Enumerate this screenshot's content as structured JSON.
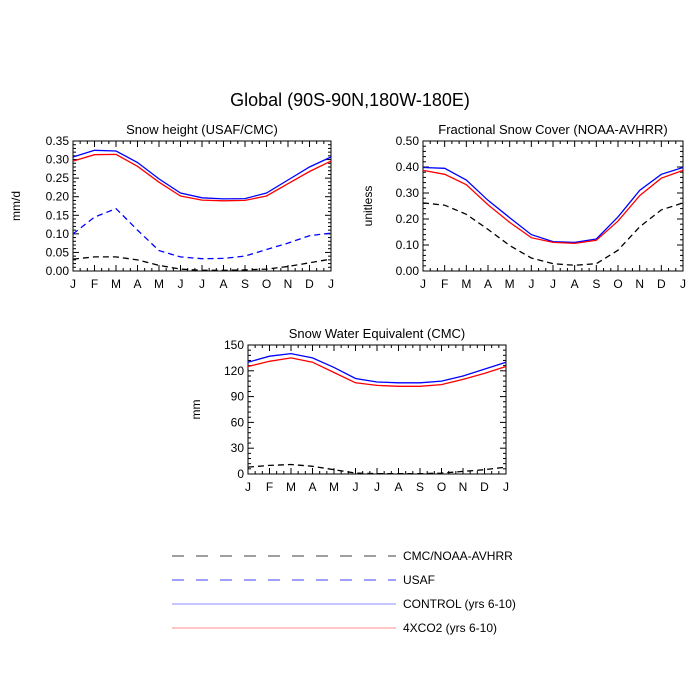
{
  "title": "Global (90S-90N,180W-180E)",
  "colors": {
    "cmc": "#000000",
    "usaf": "#0000ff",
    "control": "#0000ff",
    "x4co2": "#ff0000"
  },
  "legend": [
    {
      "label": "CMC/NOAA-AVHRR",
      "color": "#000000",
      "dash": true
    },
    {
      "label": "USAF",
      "color": "#0000ff",
      "dash": true
    },
    {
      "label": "CONTROL (yrs 6-10)",
      "color": "#0000ff",
      "dash": false
    },
    {
      "label": "4XCO2 (yrs 6-10)",
      "color": "#ff0000",
      "dash": false
    }
  ],
  "chart_data": [
    {
      "type": "line",
      "title": "Snow height (USAF/CMC)",
      "ylabel": "mm/d",
      "categories": [
        "J",
        "F",
        "M",
        "A",
        "M",
        "J",
        "J",
        "A",
        "S",
        "O",
        "N",
        "D",
        "J"
      ],
      "ylim": [
        0,
        0.35
      ],
      "yticks": [
        0.0,
        0.05,
        0.1,
        0.15,
        0.2,
        0.25,
        0.3,
        0.35
      ],
      "ytick_labels": [
        "0.00",
        "0.05",
        "0.10",
        "0.15",
        "0.20",
        "0.25",
        "0.30",
        "0.35"
      ],
      "series": [
        {
          "name": "CMC/NOAA-AVHRR",
          "color": "#000000",
          "dash": true,
          "values": [
            0.032,
            0.038,
            0.038,
            0.03,
            0.015,
            0.005,
            0.002,
            0.002,
            0.003,
            0.005,
            0.012,
            0.022,
            0.032
          ]
        },
        {
          "name": "USAF",
          "color": "#0000ff",
          "dash": true,
          "values": [
            0.1,
            0.145,
            0.168,
            0.11,
            0.055,
            0.038,
            0.033,
            0.034,
            0.04,
            0.058,
            0.075,
            0.095,
            0.102
          ]
        },
        {
          "name": "CONTROL (yrs 6-10)",
          "color": "#0000ff",
          "dash": false,
          "values": [
            0.307,
            0.325,
            0.323,
            0.292,
            0.248,
            0.21,
            0.197,
            0.194,
            0.195,
            0.21,
            0.245,
            0.28,
            0.307
          ]
        },
        {
          "name": "4XCO2 (yrs 6-10)",
          "color": "#ff0000",
          "dash": false,
          "values": [
            0.296,
            0.313,
            0.314,
            0.282,
            0.239,
            0.202,
            0.191,
            0.189,
            0.19,
            0.202,
            0.235,
            0.268,
            0.296
          ]
        }
      ]
    },
    {
      "type": "line",
      "title": "Fractional Snow Cover (NOAA-AVHRR)",
      "ylabel": "unitless",
      "categories": [
        "J",
        "F",
        "M",
        "A",
        "M",
        "J",
        "J",
        "A",
        "S",
        "O",
        "N",
        "D",
        "J"
      ],
      "ylim": [
        0,
        0.5
      ],
      "yticks": [
        0.0,
        0.1,
        0.2,
        0.3,
        0.4,
        0.5
      ],
      "ytick_labels": [
        "0.00",
        "0.10",
        "0.20",
        "0.30",
        "0.40",
        "0.50"
      ],
      "series": [
        {
          "name": "CMC/NOAA-AVHRR",
          "color": "#000000",
          "dash": true,
          "values": [
            0.262,
            0.253,
            0.218,
            0.16,
            0.098,
            0.05,
            0.028,
            0.022,
            0.028,
            0.08,
            0.17,
            0.235,
            0.262
          ]
        },
        {
          "name": "CONTROL (yrs 6-10)",
          "color": "#0000ff",
          "dash": false,
          "values": [
            0.398,
            0.395,
            0.35,
            0.272,
            0.205,
            0.14,
            0.113,
            0.11,
            0.123,
            0.208,
            0.31,
            0.372,
            0.398
          ]
        },
        {
          "name": "4XCO2 (yrs 6-10)",
          "color": "#ff0000",
          "dash": false,
          "values": [
            0.387,
            0.372,
            0.332,
            0.255,
            0.187,
            0.128,
            0.11,
            0.106,
            0.118,
            0.192,
            0.29,
            0.357,
            0.387
          ]
        }
      ]
    },
    {
      "type": "line",
      "title": "Snow Water Equivalent (CMC)",
      "ylabel": "mm",
      "categories": [
        "J",
        "F",
        "M",
        "A",
        "M",
        "J",
        "J",
        "A",
        "S",
        "O",
        "N",
        "D",
        "J"
      ],
      "ylim": [
        0,
        150
      ],
      "yticks": [
        0,
        30,
        60,
        90,
        120,
        150
      ],
      "ytick_labels": [
        "0",
        "30",
        "60",
        "90",
        "120",
        "150"
      ],
      "series": [
        {
          "name": "CMC/NOAA-AVHRR",
          "color": "#000000",
          "dash": true,
          "values": [
            8,
            10,
            11,
            9,
            5,
            1,
            0.5,
            0.3,
            0.4,
            1,
            3,
            5,
            8
          ]
        },
        {
          "name": "CONTROL (yrs 6-10)",
          "color": "#0000ff",
          "dash": false,
          "values": [
            130,
            137,
            140,
            135,
            124,
            111,
            107,
            106,
            106,
            108,
            114,
            122,
            130
          ]
        },
        {
          "name": "4XCO2 (yrs 6-10)",
          "color": "#ff0000",
          "dash": false,
          "values": [
            125,
            131,
            135,
            130,
            118,
            106,
            103,
            102,
            102,
            104,
            110,
            117,
            125
          ]
        }
      ]
    }
  ]
}
